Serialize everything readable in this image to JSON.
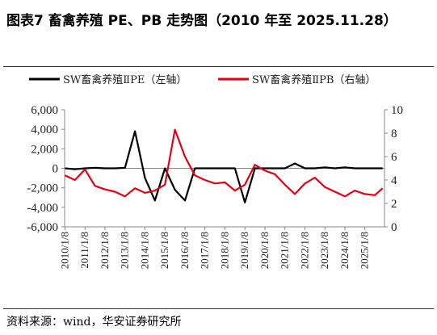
{
  "title": "图表7  畜禽养殖 PE、PB 走势图（2010 年至 2025.11.28）",
  "source": "资料来源：wind，华安证券研究所",
  "colors": {
    "pe": "#000000",
    "pb": "#e60012"
  },
  "chart_data": {
    "type": "line",
    "x": [
      "2010/1/8",
      "2010/7/8",
      "2011/1/8",
      "2011/7/8",
      "2012/1/8",
      "2012/7/8",
      "2013/1/8",
      "2013/7/8",
      "2014/1/8",
      "2014/7/8",
      "2015/1/8",
      "2015/7/8",
      "2016/1/8",
      "2016/7/8",
      "2017/1/8",
      "2017/7/8",
      "2018/1/8",
      "2018/7/8",
      "2019/1/8",
      "2019/7/8",
      "2020/1/8",
      "2020/7/8",
      "2021/1/8",
      "2021/7/8",
      "2022/1/8",
      "2022/7/8",
      "2023/1/8",
      "2023/7/8",
      "2024/1/8",
      "2024/7/8",
      "2025/1/8",
      "2025/7/8",
      "2025/11/28"
    ],
    "x_tick_labels": [
      "2010/1/8",
      "2011/1/8",
      "2012/1/8",
      "2013/1/8",
      "2014/1/8",
      "2015/1/8",
      "2016/1/8",
      "2017/1/8",
      "2018/1/8",
      "2019/1/8",
      "2020/1/8",
      "2021/1/8",
      "2022/1/8",
      "2023/1/8",
      "2024/1/8",
      "2025/1/8"
    ],
    "series": [
      {
        "name": "SW畜禽养殖ⅡPE（左轴）",
        "axis": "left",
        "values": [
          0,
          -100,
          0,
          50,
          0,
          0,
          50,
          3800,
          -1000,
          -3300,
          0,
          -2200,
          -3300,
          0,
          0,
          0,
          0,
          0,
          -3500,
          0,
          0,
          0,
          0,
          500,
          0,
          0,
          100,
          0,
          100,
          0,
          0,
          0,
          0
        ]
      },
      {
        "name": "SW畜禽养殖ⅡPB（右轴）",
        "axis": "right",
        "values": [
          4.4,
          4.0,
          4.9,
          3.5,
          3.2,
          3.0,
          2.6,
          3.3,
          2.9,
          3.1,
          3.6,
          8.3,
          6.0,
          4.4,
          4.0,
          3.7,
          3.8,
          3.1,
          3.6,
          5.3,
          4.8,
          4.5,
          3.6,
          2.8,
          3.7,
          4.2,
          3.4,
          3.0,
          2.6,
          3.1,
          2.8,
          2.7,
          3.3
        ]
      }
    ],
    "y_left": {
      "ticks": [
        "6,000",
        "4,000",
        "2,000",
        "0",
        "-2,000",
        "-4,000",
        "-6,000"
      ],
      "ylim": [
        -6000,
        6000
      ]
    },
    "y_right": {
      "ticks": [
        "10",
        "8",
        "6",
        "4",
        "2",
        "0"
      ],
      "ylim": [
        0,
        10
      ]
    },
    "legend": {
      "position": "top"
    },
    "grid": false
  }
}
